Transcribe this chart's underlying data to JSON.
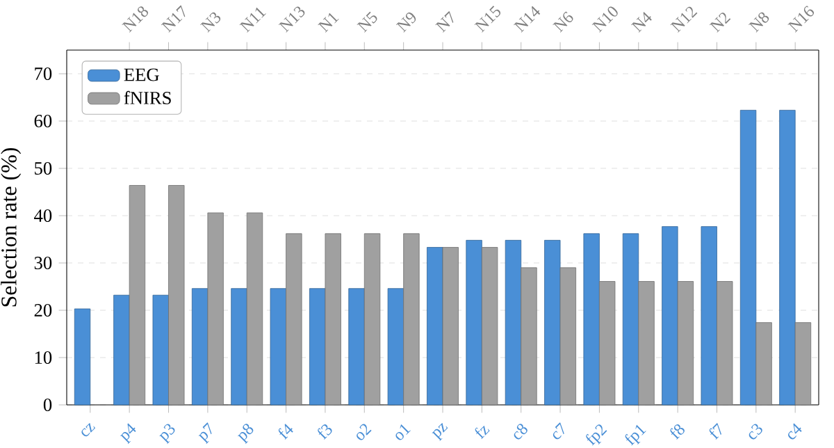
{
  "chart_data": {
    "type": "bar",
    "ylabel": "Selection rate (%)",
    "categories": [
      "cz",
      "p4",
      "p3",
      "p7",
      "p8",
      "f4",
      "f3",
      "o2",
      "o1",
      "pz",
      "fz",
      "c8",
      "c7",
      "fp2",
      "fp1",
      "f8",
      "f7",
      "c3",
      "c4"
    ],
    "series": [
      {
        "name": "EEG",
        "color": "#4a8fd6",
        "values": [
          20.3,
          23.2,
          23.2,
          24.6,
          24.6,
          24.6,
          24.6,
          24.6,
          24.6,
          33.3,
          34.8,
          34.8,
          34.8,
          36.2,
          36.2,
          37.7,
          37.7,
          62.3,
          62.3
        ]
      },
      {
        "name": "fNIRS",
        "color": "#a0a0a0",
        "values": [
          null,
          46.4,
          46.4,
          40.6,
          40.6,
          36.2,
          36.2,
          36.2,
          36.2,
          33.3,
          33.3,
          29.0,
          29.0,
          26.1,
          26.1,
          26.1,
          26.1,
          17.4,
          17.4
        ]
      }
    ],
    "ylim": [
      0,
      75
    ],
    "yticks": [
      0,
      10,
      20,
      30,
      40,
      50,
      60,
      70
    ],
    "annotations": [
      "N18",
      "N17",
      "N3",
      "N11",
      "N13",
      "N1",
      "N5",
      "N9",
      "N7",
      "N15",
      "N14",
      "N6",
      "N10",
      "N4",
      "N12",
      "N2",
      "N8",
      "N16"
    ],
    "grid": "y",
    "legend": "top left"
  }
}
